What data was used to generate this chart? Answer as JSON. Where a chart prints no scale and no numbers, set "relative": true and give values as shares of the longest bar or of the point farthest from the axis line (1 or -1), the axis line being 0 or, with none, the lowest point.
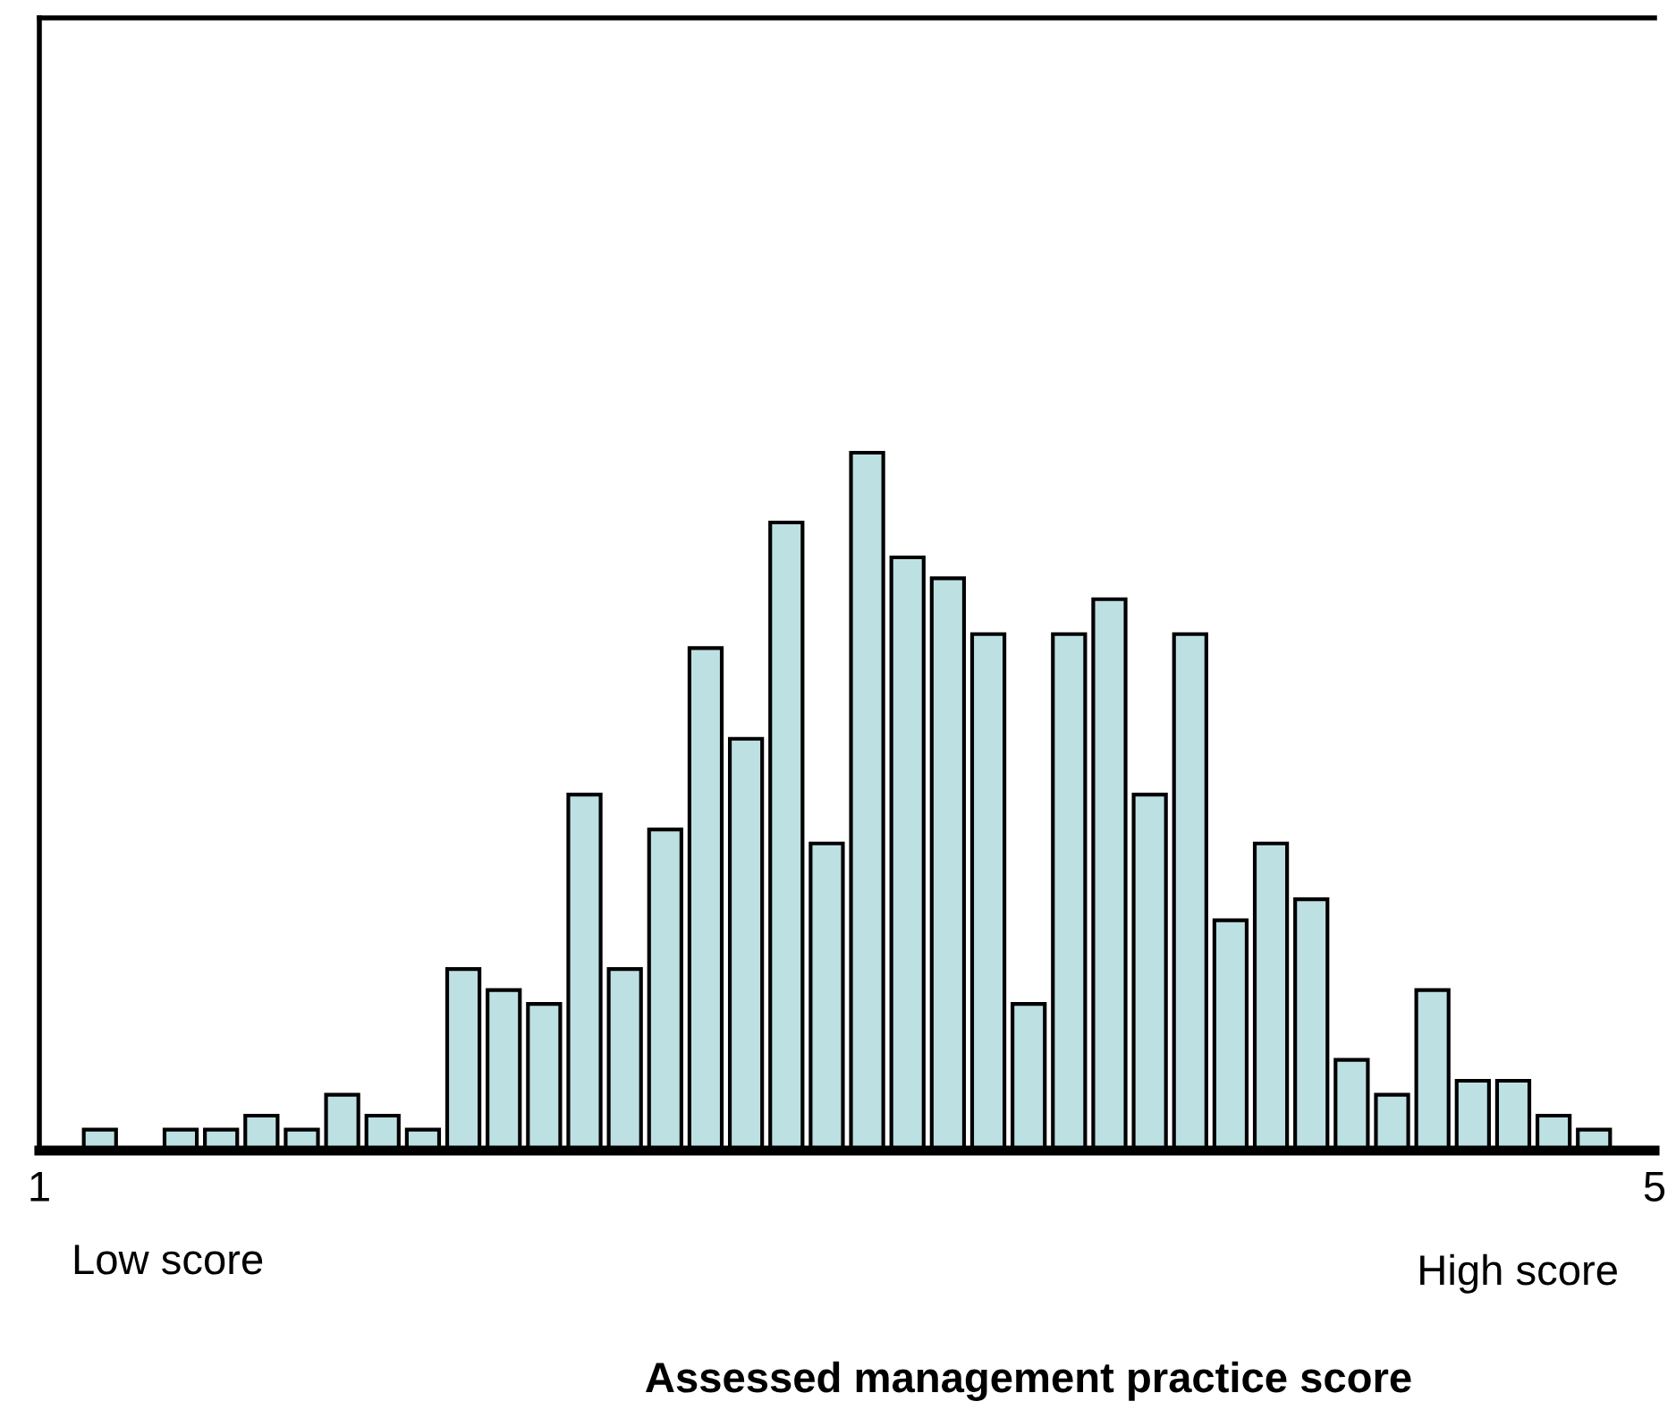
{
  "chart_data": {
    "type": "bar",
    "relative": true,
    "x": [
      1.15,
      1.25,
      1.35,
      1.45,
      1.55,
      1.65,
      1.75,
      1.85,
      1.95,
      2.05,
      2.15,
      2.25,
      2.35,
      2.45,
      2.55,
      2.65,
      2.75,
      2.85,
      2.95,
      3.05,
      3.15,
      3.25,
      3.35,
      3.45,
      3.55,
      3.65,
      3.75,
      3.85,
      3.95,
      4.05,
      4.15,
      4.25,
      4.35,
      4.45,
      4.55,
      4.65,
      4.75,
      4.85
    ],
    "values": [
      0.03,
      null,
      0.03,
      0.03,
      0.05,
      0.03,
      0.08,
      0.05,
      0.03,
      0.26,
      0.23,
      0.21,
      0.51,
      0.26,
      0.46,
      0.72,
      0.59,
      0.9,
      0.44,
      1,
      0.85,
      0.82,
      0.74,
      0.21,
      0.74,
      0.79,
      0.51,
      0.74,
      0.33,
      0.44,
      0.36,
      0.13,
      0.08,
      0.23,
      0.1,
      0.1,
      0.05,
      0.03
    ],
    "color": "#bde0e3",
    "xlim": [
      1,
      5
    ],
    "xticks": [
      1,
      5
    ],
    "xlabel": "Assessed management practice score",
    "annotations": [
      "Low score",
      "High score"
    ],
    "grid": false,
    "legend": false
  }
}
